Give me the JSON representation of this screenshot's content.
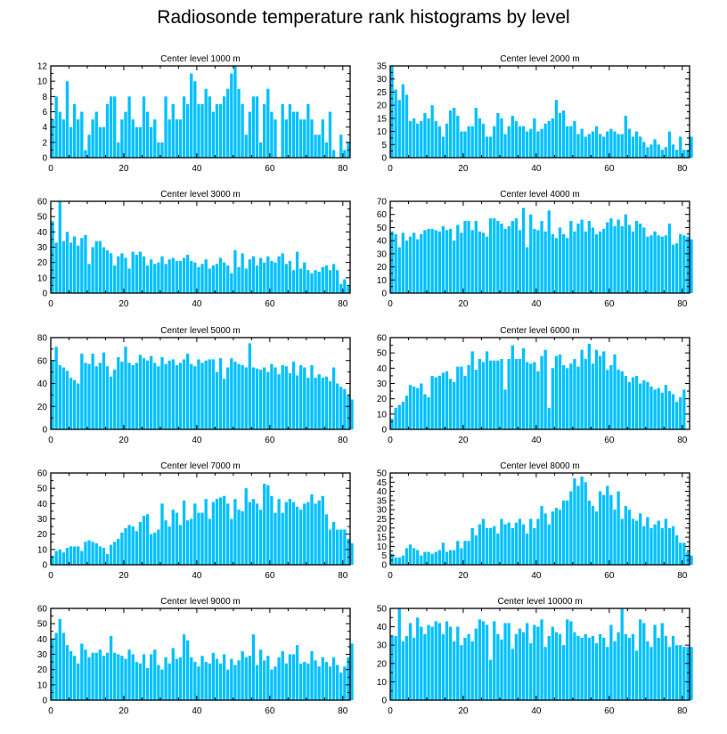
{
  "title": "Radiosonde temperature rank histograms by level",
  "bar_color": "#00c0ff",
  "chart_data": [
    {
      "type": "bar",
      "title": "Center level 1000 m",
      "xlabel": "",
      "ylabel": "",
      "xlim": [
        0,
        82
      ],
      "ylim": [
        0,
        12
      ],
      "xticks": [
        0,
        20,
        40,
        60,
        80
      ],
      "yticks": [
        0,
        2,
        4,
        6,
        8,
        10,
        12
      ],
      "values": [
        5,
        8,
        6,
        5,
        10,
        4,
        7,
        5,
        6,
        1,
        3,
        5,
        6,
        4,
        4,
        7,
        8,
        8,
        2,
        5,
        6,
        8,
        5,
        4,
        4,
        8,
        6,
        4,
        5,
        2,
        2,
        8,
        5,
        7,
        5,
        5,
        8,
        7,
        11,
        10,
        7,
        7,
        9,
        8,
        6,
        7,
        7,
        8,
        9,
        11,
        12,
        9,
        7,
        3,
        6,
        8,
        8,
        2,
        7,
        9,
        6,
        5,
        0,
        7,
        5,
        7,
        6,
        6,
        5,
        5,
        7,
        5,
        3,
        3,
        5,
        2,
        6,
        1,
        0,
        3,
        1,
        2
      ]
    },
    {
      "type": "bar",
      "title": "Center level 2000 m",
      "xlabel": "",
      "ylabel": "",
      "xlim": [
        0,
        82
      ],
      "ylim": [
        0,
        35
      ],
      "xticks": [
        0,
        20,
        40,
        60,
        80
      ],
      "yticks": [
        0,
        5,
        10,
        15,
        20,
        25,
        30,
        35
      ],
      "values": [
        35,
        26,
        22,
        28,
        24,
        14,
        15,
        13,
        14,
        17,
        15,
        20,
        14,
        12,
        8,
        13,
        18,
        19,
        16,
        10,
        10,
        12,
        12,
        19,
        15,
        13,
        8,
        8,
        12,
        17,
        15,
        9,
        12,
        16,
        14,
        12,
        12,
        10,
        11,
        15,
        10,
        11,
        13,
        14,
        15,
        22,
        17,
        18,
        12,
        12,
        14,
        9,
        11,
        8,
        9,
        10,
        12,
        9,
        8,
        10,
        11,
        10,
        9,
        9,
        16,
        11,
        8,
        10,
        8,
        6,
        4,
        5,
        7,
        5,
        3,
        4,
        10,
        5,
        3,
        8,
        3,
        3,
        8
      ]
    },
    {
      "type": "bar",
      "title": "Center level 3000 m",
      "xlabel": "",
      "ylabel": "",
      "xlim": [
        0,
        82
      ],
      "ylim": [
        0,
        60
      ],
      "xticks": [
        0,
        20,
        40,
        60,
        80
      ],
      "yticks": [
        0,
        10,
        20,
        30,
        40,
        50,
        60
      ],
      "values": [
        47,
        33,
        60,
        34,
        40,
        33,
        37,
        31,
        36,
        38,
        19,
        30,
        34,
        34,
        30,
        28,
        26,
        18,
        24,
        26,
        23,
        16,
        27,
        25,
        27,
        24,
        18,
        22,
        19,
        20,
        24,
        19,
        22,
        23,
        21,
        21,
        23,
        25,
        21,
        20,
        17,
        19,
        22,
        16,
        18,
        19,
        23,
        20,
        18,
        13,
        28,
        17,
        26,
        16,
        22,
        24,
        18,
        23,
        20,
        24,
        21,
        20,
        24,
        26,
        19,
        21,
        15,
        27,
        16,
        20,
        15,
        13,
        15,
        14,
        17,
        18,
        15,
        19,
        15,
        6,
        9,
        5
      ]
    },
    {
      "type": "bar",
      "title": "Center level 4000 m",
      "xlabel": "",
      "ylabel": "",
      "xlim": [
        0,
        82
      ],
      "ylim": [
        0,
        70
      ],
      "xticks": [
        0,
        20,
        40,
        60,
        80
      ],
      "yticks": [
        0,
        10,
        20,
        30,
        40,
        50,
        60,
        70
      ],
      "values": [
        47,
        45,
        35,
        46,
        40,
        43,
        46,
        41,
        45,
        48,
        49,
        49,
        48,
        47,
        51,
        48,
        49,
        40,
        52,
        46,
        55,
        55,
        48,
        55,
        47,
        46,
        43,
        57,
        57,
        55,
        53,
        49,
        51,
        55,
        57,
        48,
        65,
        35,
        60,
        49,
        48,
        55,
        47,
        63,
        45,
        42,
        50,
        45,
        42,
        55,
        47,
        53,
        56,
        47,
        55,
        50,
        45,
        47,
        49,
        54,
        57,
        51,
        56,
        51,
        60,
        52,
        47,
        55,
        53,
        50,
        43,
        44,
        47,
        44,
        43,
        44,
        53,
        37,
        38,
        45,
        44,
        43,
        41
      ]
    },
    {
      "type": "bar",
      "title": "Center level 5000 m",
      "xlabel": "",
      "ylabel": "",
      "xlim": [
        0,
        82
      ],
      "ylim": [
        0,
        80
      ],
      "xticks": [
        0,
        20,
        40,
        60,
        80
      ],
      "yticks": [
        0,
        20,
        40,
        60,
        80
      ],
      "values": [
        60,
        72,
        56,
        54,
        51,
        45,
        43,
        40,
        66,
        58,
        57,
        66,
        55,
        58,
        67,
        55,
        46,
        52,
        63,
        59,
        72,
        58,
        56,
        58,
        65,
        62,
        60,
        64,
        58,
        55,
        63,
        57,
        60,
        61,
        56,
        58,
        61,
        66,
        57,
        55,
        61,
        58,
        60,
        61,
        61,
        50,
        62,
        44,
        54,
        62,
        59,
        57,
        56,
        54,
        75,
        54,
        53,
        52,
        54,
        50,
        57,
        54,
        48,
        56,
        55,
        49,
        59,
        47,
        56,
        54,
        45,
        56,
        45,
        48,
        45,
        46,
        42,
        54,
        40,
        37,
        35,
        30,
        26
      ]
    },
    {
      "type": "bar",
      "title": "Center level 6000 m",
      "xlabel": "",
      "ylabel": "",
      "xlim": [
        0,
        82
      ],
      "ylim": [
        0,
        60
      ],
      "xticks": [
        0,
        20,
        40,
        60,
        80
      ],
      "yticks": [
        0,
        10,
        20,
        30,
        40,
        50,
        60
      ],
      "values": [
        7,
        14,
        16,
        18,
        22,
        29,
        28,
        27,
        30,
        23,
        21,
        35,
        34,
        35,
        37,
        38,
        33,
        31,
        41,
        41,
        35,
        42,
        51,
        39,
        46,
        44,
        51,
        45,
        45,
        45,
        46,
        26,
        46,
        55,
        46,
        46,
        53,
        44,
        43,
        44,
        38,
        48,
        52,
        14,
        40,
        48,
        49,
        42,
        40,
        43,
        46,
        41,
        52,
        46,
        56,
        43,
        52,
        48,
        51,
        39,
        42,
        49,
        39,
        38,
        35,
        31,
        34,
        35,
        30,
        32,
        31,
        28,
        26,
        27,
        24,
        29,
        25,
        23,
        18,
        21,
        26
      ]
    },
    {
      "type": "bar",
      "title": "Center level 7000 m",
      "xlabel": "",
      "ylabel": "",
      "xlim": [
        0,
        82
      ],
      "ylim": [
        0,
        60
      ],
      "xticks": [
        0,
        20,
        40,
        60,
        80
      ],
      "yticks": [
        0,
        10,
        20,
        30,
        40,
        50,
        60
      ],
      "values": [
        6,
        9,
        10,
        8,
        11,
        12,
        12,
        12,
        9,
        15,
        16,
        15,
        14,
        12,
        11,
        7,
        13,
        15,
        17,
        21,
        24,
        26,
        25,
        22,
        28,
        32,
        33,
        20,
        21,
        23,
        40,
        29,
        25,
        36,
        34,
        26,
        42,
        29,
        30,
        40,
        34,
        34,
        43,
        30,
        41,
        43,
        44,
        45,
        40,
        30,
        43,
        36,
        35,
        50,
        41,
        43,
        40,
        36,
        53,
        52,
        45,
        34,
        43,
        34,
        41,
        43,
        41,
        38,
        36,
        40,
        41,
        46,
        40,
        42,
        45,
        33,
        23,
        28,
        23,
        23,
        23,
        17,
        14
      ]
    },
    {
      "type": "bar",
      "title": "Center level 8000 m",
      "xlabel": "",
      "ylabel": "",
      "xlim": [
        0,
        82
      ],
      "ylim": [
        0,
        50
      ],
      "xticks": [
        0,
        20,
        40,
        60,
        80
      ],
      "yticks": [
        0,
        5,
        10,
        15,
        20,
        25,
        30,
        35,
        40,
        45,
        50
      ],
      "values": [
        6,
        4,
        4,
        5,
        9,
        11,
        9,
        8,
        5,
        7,
        7,
        6,
        7,
        8,
        12,
        7,
        8,
        8,
        13,
        9,
        13,
        13,
        20,
        16,
        22,
        25,
        20,
        20,
        21,
        17,
        25,
        22,
        23,
        20,
        23,
        25,
        22,
        17,
        25,
        20,
        25,
        32,
        28,
        22,
        29,
        31,
        30,
        35,
        35,
        40,
        47,
        43,
        48,
        45,
        35,
        32,
        29,
        40,
        38,
        43,
        38,
        30,
        40,
        25,
        32,
        30,
        25,
        24,
        28,
        21,
        26,
        20,
        22,
        24,
        20,
        25,
        20,
        21,
        16,
        12,
        12,
        7,
        5
      ]
    },
    {
      "type": "bar",
      "title": "Center level 9000 m",
      "xlabel": "",
      "ylabel": "",
      "xlim": [
        0,
        82
      ],
      "ylim": [
        0,
        60
      ],
      "xticks": [
        0,
        20,
        40,
        60,
        80
      ],
      "yticks": [
        0,
        10,
        20,
        30,
        40,
        50,
        60
      ],
      "values": [
        40,
        44,
        53,
        44,
        36,
        32,
        29,
        24,
        37,
        33,
        28,
        31,
        31,
        33,
        29,
        31,
        42,
        31,
        30,
        29,
        27,
        33,
        30,
        25,
        24,
        30,
        21,
        30,
        33,
        23,
        20,
        28,
        24,
        34,
        27,
        28,
        43,
        39,
        28,
        25,
        22,
        29,
        25,
        24,
        31,
        27,
        24,
        30,
        20,
        27,
        23,
        26,
        32,
        28,
        29,
        43,
        23,
        33,
        26,
        29,
        20,
        22,
        28,
        32,
        24,
        30,
        30,
        36,
        24,
        25,
        24,
        32,
        26,
        22,
        28,
        25,
        22,
        28,
        23,
        18,
        22,
        28,
        37
      ]
    },
    {
      "type": "bar",
      "title": "Center level 10000 m",
      "xlabel": "",
      "ylabel": "",
      "xlim": [
        0,
        82
      ],
      "ylim": [
        0,
        50
      ],
      "xticks": [
        0,
        20,
        40,
        60,
        80
      ],
      "yticks": [
        0,
        10,
        20,
        30,
        40,
        50
      ],
      "values": [
        35,
        35,
        50,
        32,
        35,
        42,
        34,
        45,
        40,
        36,
        41,
        40,
        43,
        42,
        36,
        43,
        40,
        32,
        40,
        30,
        34,
        36,
        32,
        39,
        44,
        43,
        41,
        22,
        43,
        36,
        33,
        42,
        42,
        28,
        36,
        39,
        37,
        42,
        31,
        41,
        40,
        44,
        29,
        35,
        40,
        37,
        36,
        30,
        44,
        43,
        37,
        35,
        34,
        36,
        34,
        35,
        31,
        36,
        34,
        29,
        41,
        32,
        37,
        50,
        36,
        34,
        36,
        27,
        44,
        42,
        32,
        29,
        41,
        34,
        42,
        35,
        29,
        35,
        30,
        30,
        29,
        29,
        29
      ]
    }
  ]
}
